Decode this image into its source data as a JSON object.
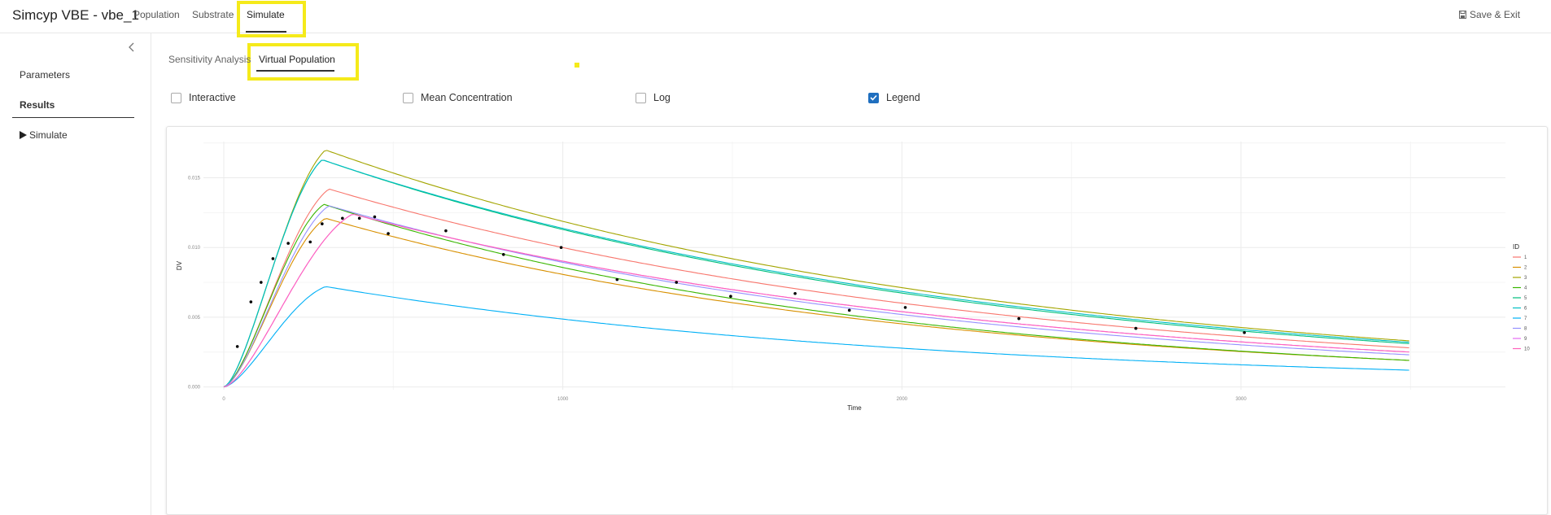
{
  "app": {
    "title": "Simcyp VBE - vbe_1"
  },
  "top_nav": {
    "items": [
      {
        "label": "Population"
      },
      {
        "label": "Substrate"
      },
      {
        "label": "Simulate"
      }
    ],
    "save_exit_label": "Save & Exit"
  },
  "sidebar": {
    "items": [
      {
        "label": "Parameters"
      },
      {
        "label": "Results"
      }
    ],
    "simulate_label": "Simulate"
  },
  "sub_tabs": [
    {
      "label": "Sensitivity Analysis"
    },
    {
      "label": "Virtual Population"
    }
  ],
  "options": [
    {
      "label": "Interactive",
      "checked": false
    },
    {
      "label": "Mean Concentration",
      "checked": false
    },
    {
      "label": "Log",
      "checked": false
    },
    {
      "label": "Legend",
      "checked": true
    }
  ],
  "highlight_color": "#f5ea1a",
  "chart_data": {
    "type": "line",
    "xlabel": "Time",
    "ylabel": "DV",
    "xlim": [
      -60,
      3780
    ],
    "ylim": [
      -0.0002,
      0.0176
    ],
    "x_ticks": [
      0,
      1000,
      2000,
      3000
    ],
    "x_tick_labels": [
      "0",
      "1000",
      "2000",
      "3000"
    ],
    "y_ticks": [
      0,
      0.005,
      0.01,
      0.015
    ],
    "y_tick_labels": [
      "0.000",
      "0.005",
      "0.010",
      "0.015"
    ],
    "grid": true,
    "legend": {
      "title": "ID",
      "position": "right"
    },
    "series": [
      {
        "name": "1",
        "color": "#F8766D",
        "peak": 0.0142,
        "t_peak": 310,
        "end": 0.0028
      },
      {
        "name": "2",
        "color": "#D89000",
        "peak": 0.0121,
        "t_peak": 300,
        "end": 0.0019
      },
      {
        "name": "3",
        "color": "#A3A500",
        "peak": 0.017,
        "t_peak": 300,
        "end": 0.0033
      },
      {
        "name": "4",
        "color": "#39B600",
        "peak": 0.0131,
        "t_peak": 295,
        "end": 0.0019
      },
      {
        "name": "5",
        "color": "#00BF7D",
        "peak": 0.0163,
        "t_peak": 290,
        "end": 0.0031
      },
      {
        "name": "6",
        "color": "#00BFC4",
        "peak": 0.0163,
        "t_peak": 290,
        "end": 0.0032
      },
      {
        "name": "7",
        "color": "#00B0F6",
        "peak": 0.0072,
        "t_peak": 300,
        "end": 0.0012
      },
      {
        "name": "8",
        "color": "#9590FF",
        "peak": 0.013,
        "t_peak": 310,
        "end": 0.0023
      },
      {
        "name": "9",
        "color": "#E76BF3",
        "peak": 0.0124,
        "t_peak": 380,
        "end": 0.0025
      },
      {
        "name": "10",
        "color": "#FF62BC",
        "peak": 0.0124,
        "t_peak": 380,
        "end": 0.0025
      }
    ],
    "observed": {
      "x": [
        40,
        80,
        110,
        145,
        190,
        255,
        290,
        350,
        400,
        445,
        485,
        655,
        825,
        995,
        1160,
        1335,
        1495,
        1685,
        1845,
        2010,
        2345,
        2690,
        3010
      ],
      "y": [
        0.0029,
        0.0061,
        0.0075,
        0.0092,
        0.0103,
        0.0104,
        0.0117,
        0.0121,
        0.0121,
        0.0122,
        0.011,
        0.0112,
        0.0095,
        0.01,
        0.0077,
        0.0075,
        0.0065,
        0.0067,
        0.0055,
        0.0057,
        0.0049,
        0.0042,
        0.0039
      ]
    }
  }
}
